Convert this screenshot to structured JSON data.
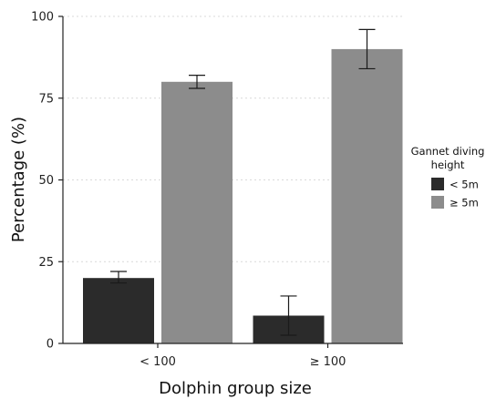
{
  "chart_data": {
    "type": "bar",
    "categories": [
      "< 100",
      "≥ 100"
    ],
    "series": [
      {
        "name": "< 5m",
        "color": "#2b2b2b",
        "values": [
          20,
          8.5
        ],
        "error_low": [
          18.5,
          2.5
        ],
        "error_high": [
          22,
          14.5
        ]
      },
      {
        "name": "≥ 5m",
        "color": "#8c8c8c",
        "values": [
          80,
          90
        ],
        "error_low": [
          78,
          84
        ],
        "error_high": [
          82,
          96
        ]
      }
    ],
    "xlabel": "Dolphin group size",
    "ylabel": "Percentage (%)",
    "ylim": [
      0,
      100
    ],
    "yticks": [
      0,
      25,
      50,
      75,
      100
    ],
    "grid": "horizontal dotted",
    "legend": {
      "title_lines": [
        "Gannet diving",
        "height"
      ],
      "placement": "right"
    }
  }
}
